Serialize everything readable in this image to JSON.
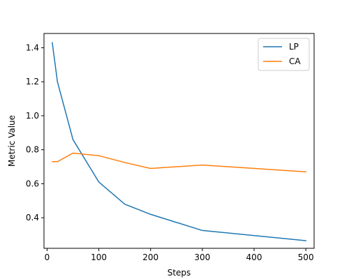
{
  "chart_data": {
    "type": "line",
    "title": "",
    "xlabel": "Steps",
    "ylabel": "Metric Value",
    "xlim": [
      -6,
      516
    ],
    "ylim": [
      0.22,
      1.484
    ],
    "xticks": [
      0,
      100,
      200,
      300,
      400,
      500
    ],
    "yticks": [
      0.4,
      0.6,
      0.8,
      1.0,
      1.2,
      1.4
    ],
    "ytick_labels": [
      "0.4",
      "0.6",
      "0.8",
      "1.0",
      "1.2",
      "1.4"
    ],
    "grid": false,
    "legend_position": "top-right",
    "series": [
      {
        "name": "LP",
        "color": "#1f77b4",
        "x": [
          10,
          20,
          50,
          100,
          150,
          200,
          300,
          500
        ],
        "y": [
          1.43,
          1.2,
          0.86,
          0.61,
          0.48,
          0.42,
          0.325,
          0.265
        ]
      },
      {
        "name": "CA",
        "color": "#ff7f0e",
        "x": [
          10,
          20,
          50,
          100,
          150,
          200,
          300,
          500
        ],
        "y": [
          0.73,
          0.73,
          0.78,
          0.765,
          0.725,
          0.69,
          0.71,
          0.67
        ]
      }
    ]
  }
}
